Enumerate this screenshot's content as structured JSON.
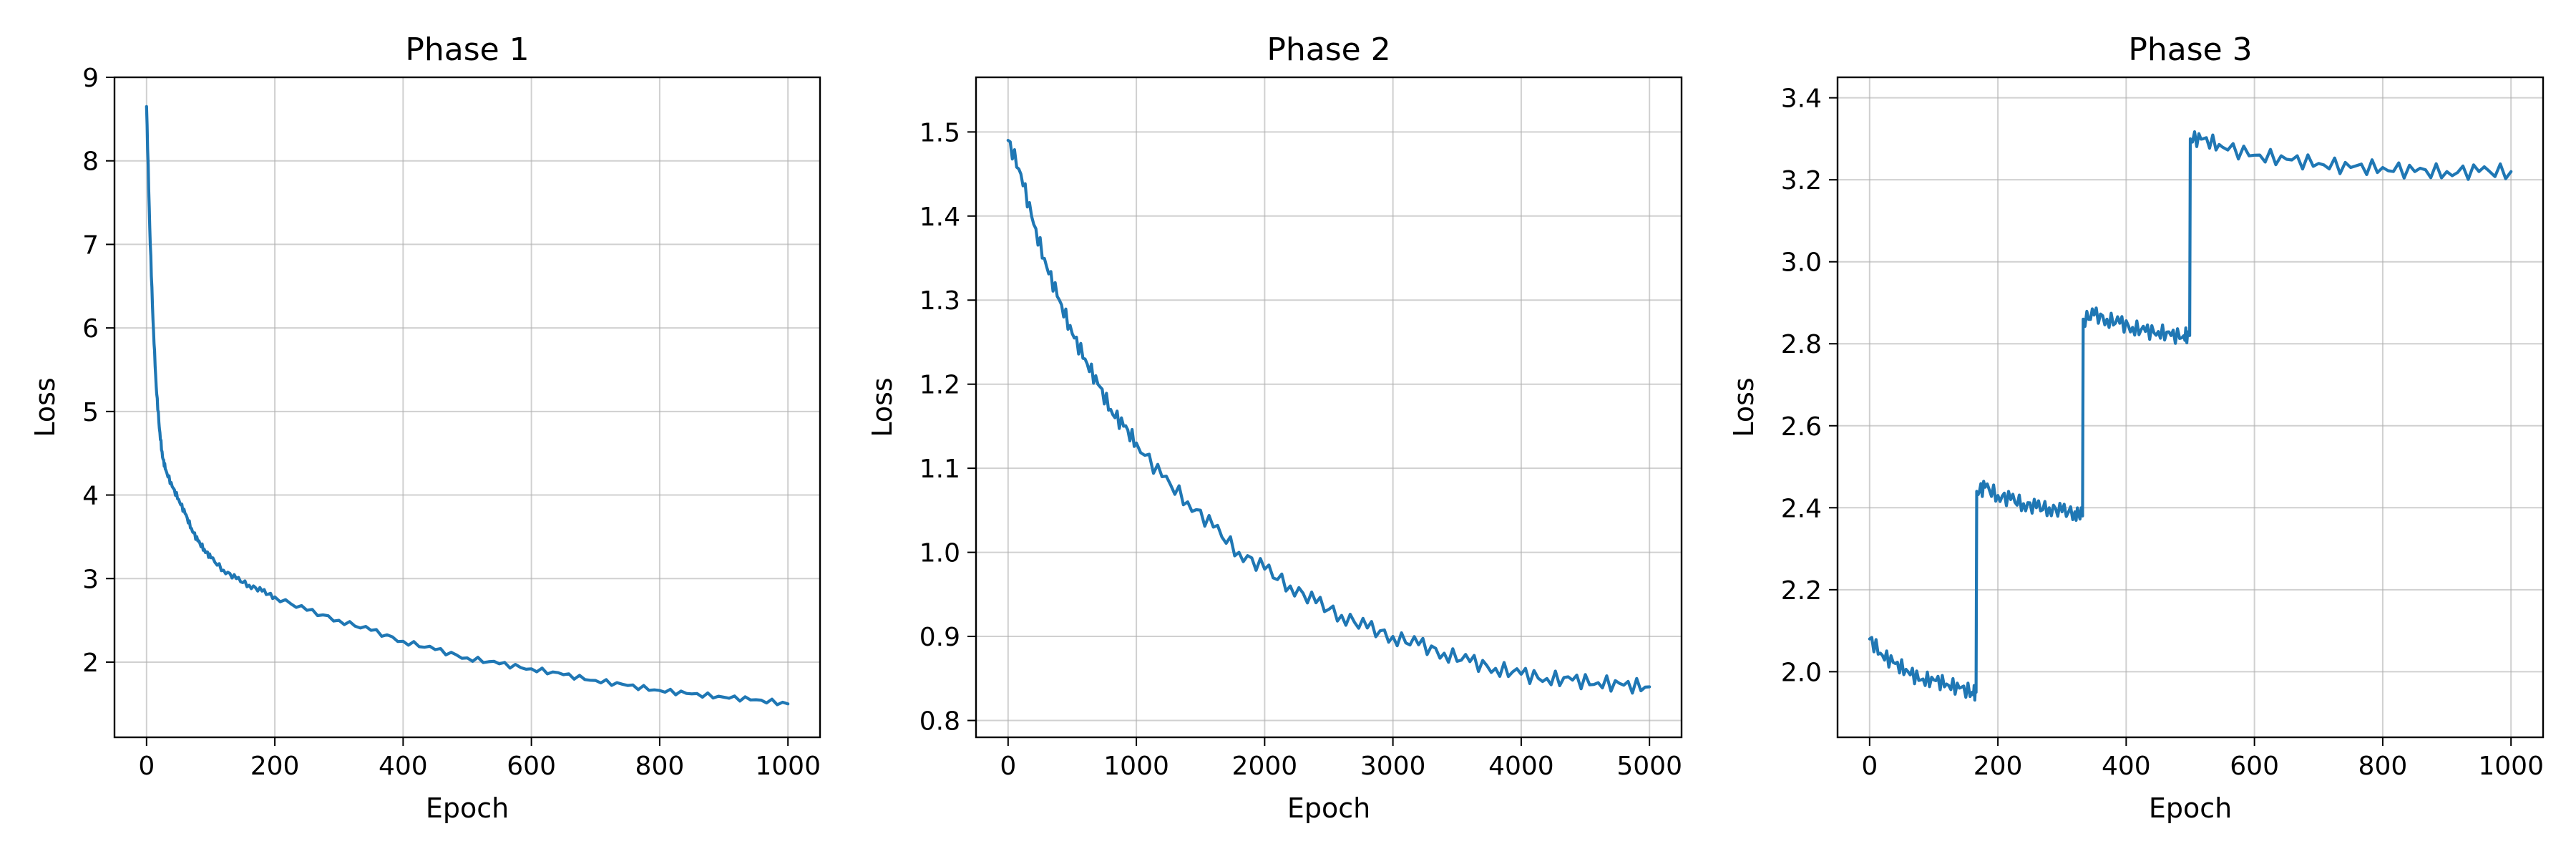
{
  "figure": {
    "colors": {
      "series": "#1f77b4",
      "grid": "#b0b0b0",
      "frame": "#000000",
      "background": "#ffffff"
    }
  },
  "chart_data": [
    {
      "type": "line",
      "title": "Phase 1",
      "xlabel": "Epoch",
      "ylabel": "Loss",
      "xlim": [
        -50,
        1050
      ],
      "ylim": [
        1.1,
        9.0
      ],
      "xticks": [
        0,
        200,
        400,
        600,
        800,
        1000
      ],
      "yticks": [
        2,
        3,
        4,
        5,
        6,
        7,
        8,
        9
      ],
      "grid": true,
      "series": [
        {
          "x": [
            0,
            5,
            10,
            15,
            20,
            25,
            30,
            40,
            50,
            60,
            70,
            80,
            90,
            100,
            120,
            140,
            160,
            180,
            200,
            250,
            300,
            350,
            400,
            450,
            500,
            550,
            600,
            650,
            700,
            750,
            800,
            850,
            900,
            950,
            1000
          ],
          "y": [
            8.65,
            7.2,
            6.1,
            5.3,
            4.8,
            4.45,
            4.3,
            4.1,
            3.95,
            3.78,
            3.6,
            3.45,
            3.35,
            3.25,
            3.1,
            3.0,
            2.92,
            2.85,
            2.78,
            2.62,
            2.5,
            2.38,
            2.25,
            2.15,
            2.05,
            1.98,
            1.92,
            1.85,
            1.78,
            1.72,
            1.66,
            1.62,
            1.58,
            1.55,
            1.5
          ]
        }
      ]
    },
    {
      "type": "line",
      "title": "Phase 2",
      "xlabel": "Epoch",
      "ylabel": "Loss",
      "xlim": [
        -250,
        5250
      ],
      "ylim": [
        0.78,
        1.565
      ],
      "xticks": [
        0,
        1000,
        2000,
        3000,
        4000,
        5000
      ],
      "yticks": [
        0.8,
        0.9,
        1.0,
        1.1,
        1.2,
        1.3,
        1.4,
        1.5
      ],
      "grid": true,
      "series": [
        {
          "x": [
            0,
            100,
            200,
            300,
            400,
            500,
            600,
            700,
            800,
            900,
            1000,
            1200,
            1400,
            1600,
            1800,
            2000,
            2200,
            2400,
            2600,
            2800,
            3000,
            3200,
            3400,
            3600,
            3800,
            4000,
            4200,
            4400,
            4600,
            4800,
            5000
          ],
          "y": [
            1.49,
            1.45,
            1.39,
            1.34,
            1.3,
            1.26,
            1.23,
            1.2,
            1.17,
            1.15,
            1.13,
            1.09,
            1.06,
            1.03,
            1.0,
            0.98,
            0.96,
            0.94,
            0.925,
            0.91,
            0.9,
            0.89,
            0.88,
            0.87,
            0.862,
            0.855,
            0.85,
            0.848,
            0.845,
            0.842,
            0.84
          ]
        }
      ]
    },
    {
      "type": "line",
      "title": "Phase 3",
      "xlabel": "Epoch",
      "ylabel": "Loss",
      "xlim": [
        -50,
        1050
      ],
      "ylim": [
        1.84,
        3.45
      ],
      "xticks": [
        0,
        200,
        400,
        600,
        800,
        1000
      ],
      "yticks": [
        2.0,
        2.2,
        2.4,
        2.6,
        2.8,
        3.0,
        3.2,
        3.4
      ],
      "grid": true,
      "series": [
        {
          "x": [
            0,
            20,
            40,
            60,
            80,
            100,
            120,
            140,
            160,
            166,
            167,
            180,
            200,
            220,
            240,
            260,
            280,
            300,
            320,
            332,
            333,
            350,
            370,
            390,
            410,
            430,
            450,
            470,
            490,
            499,
            500,
            520,
            550,
            600,
            650,
            700,
            750,
            800,
            850,
            900,
            950,
            1000
          ],
          "y": [
            2.08,
            2.04,
            2.02,
            2.0,
            1.98,
            1.98,
            1.97,
            1.96,
            1.95,
            1.95,
            2.44,
            2.45,
            2.43,
            2.42,
            2.41,
            2.4,
            2.4,
            2.39,
            2.39,
            2.38,
            2.86,
            2.87,
            2.86,
            2.85,
            2.84,
            2.83,
            2.83,
            2.82,
            2.82,
            2.82,
            3.3,
            3.3,
            3.28,
            3.26,
            3.25,
            3.24,
            3.23,
            3.23,
            3.22,
            3.22,
            3.22,
            3.22
          ]
        }
      ]
    }
  ]
}
